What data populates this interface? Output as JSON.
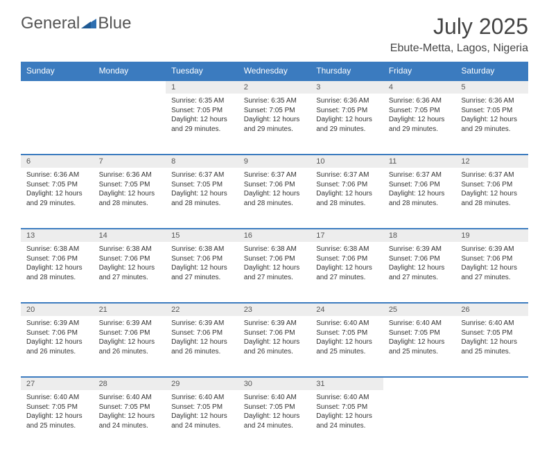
{
  "brand": {
    "part1": "General",
    "part2": "Blue"
  },
  "title": "July 2025",
  "location": "Ebute-Metta, Lagos, Nigeria",
  "colors": {
    "header_bg": "#3b7bbf",
    "header_text": "#ffffff",
    "daynum_bg": "#ededed",
    "border": "#3b7bbf",
    "text": "#333333",
    "title_text": "#444444",
    "logo_text": "#555555",
    "logo_accent": "#2e6fb0"
  },
  "days_of_week": [
    "Sunday",
    "Monday",
    "Tuesday",
    "Wednesday",
    "Thursday",
    "Friday",
    "Saturday"
  ],
  "weeks": [
    {
      "nums": [
        "",
        "",
        "1",
        "2",
        "3",
        "4",
        "5"
      ],
      "data": [
        null,
        null,
        {
          "sunrise": "Sunrise: 6:35 AM",
          "sunset": "Sunset: 7:05 PM",
          "dl1": "Daylight: 12 hours",
          "dl2": "and 29 minutes."
        },
        {
          "sunrise": "Sunrise: 6:35 AM",
          "sunset": "Sunset: 7:05 PM",
          "dl1": "Daylight: 12 hours",
          "dl2": "and 29 minutes."
        },
        {
          "sunrise": "Sunrise: 6:36 AM",
          "sunset": "Sunset: 7:05 PM",
          "dl1": "Daylight: 12 hours",
          "dl2": "and 29 minutes."
        },
        {
          "sunrise": "Sunrise: 6:36 AM",
          "sunset": "Sunset: 7:05 PM",
          "dl1": "Daylight: 12 hours",
          "dl2": "and 29 minutes."
        },
        {
          "sunrise": "Sunrise: 6:36 AM",
          "sunset": "Sunset: 7:05 PM",
          "dl1": "Daylight: 12 hours",
          "dl2": "and 29 minutes."
        }
      ]
    },
    {
      "nums": [
        "6",
        "7",
        "8",
        "9",
        "10",
        "11",
        "12"
      ],
      "data": [
        {
          "sunrise": "Sunrise: 6:36 AM",
          "sunset": "Sunset: 7:05 PM",
          "dl1": "Daylight: 12 hours",
          "dl2": "and 29 minutes."
        },
        {
          "sunrise": "Sunrise: 6:36 AM",
          "sunset": "Sunset: 7:05 PM",
          "dl1": "Daylight: 12 hours",
          "dl2": "and 28 minutes."
        },
        {
          "sunrise": "Sunrise: 6:37 AM",
          "sunset": "Sunset: 7:05 PM",
          "dl1": "Daylight: 12 hours",
          "dl2": "and 28 minutes."
        },
        {
          "sunrise": "Sunrise: 6:37 AM",
          "sunset": "Sunset: 7:06 PM",
          "dl1": "Daylight: 12 hours",
          "dl2": "and 28 minutes."
        },
        {
          "sunrise": "Sunrise: 6:37 AM",
          "sunset": "Sunset: 7:06 PM",
          "dl1": "Daylight: 12 hours",
          "dl2": "and 28 minutes."
        },
        {
          "sunrise": "Sunrise: 6:37 AM",
          "sunset": "Sunset: 7:06 PM",
          "dl1": "Daylight: 12 hours",
          "dl2": "and 28 minutes."
        },
        {
          "sunrise": "Sunrise: 6:37 AM",
          "sunset": "Sunset: 7:06 PM",
          "dl1": "Daylight: 12 hours",
          "dl2": "and 28 minutes."
        }
      ]
    },
    {
      "nums": [
        "13",
        "14",
        "15",
        "16",
        "17",
        "18",
        "19"
      ],
      "data": [
        {
          "sunrise": "Sunrise: 6:38 AM",
          "sunset": "Sunset: 7:06 PM",
          "dl1": "Daylight: 12 hours",
          "dl2": "and 28 minutes."
        },
        {
          "sunrise": "Sunrise: 6:38 AM",
          "sunset": "Sunset: 7:06 PM",
          "dl1": "Daylight: 12 hours",
          "dl2": "and 27 minutes."
        },
        {
          "sunrise": "Sunrise: 6:38 AM",
          "sunset": "Sunset: 7:06 PM",
          "dl1": "Daylight: 12 hours",
          "dl2": "and 27 minutes."
        },
        {
          "sunrise": "Sunrise: 6:38 AM",
          "sunset": "Sunset: 7:06 PM",
          "dl1": "Daylight: 12 hours",
          "dl2": "and 27 minutes."
        },
        {
          "sunrise": "Sunrise: 6:38 AM",
          "sunset": "Sunset: 7:06 PM",
          "dl1": "Daylight: 12 hours",
          "dl2": "and 27 minutes."
        },
        {
          "sunrise": "Sunrise: 6:39 AM",
          "sunset": "Sunset: 7:06 PM",
          "dl1": "Daylight: 12 hours",
          "dl2": "and 27 minutes."
        },
        {
          "sunrise": "Sunrise: 6:39 AM",
          "sunset": "Sunset: 7:06 PM",
          "dl1": "Daylight: 12 hours",
          "dl2": "and 27 minutes."
        }
      ]
    },
    {
      "nums": [
        "20",
        "21",
        "22",
        "23",
        "24",
        "25",
        "26"
      ],
      "data": [
        {
          "sunrise": "Sunrise: 6:39 AM",
          "sunset": "Sunset: 7:06 PM",
          "dl1": "Daylight: 12 hours",
          "dl2": "and 26 minutes."
        },
        {
          "sunrise": "Sunrise: 6:39 AM",
          "sunset": "Sunset: 7:06 PM",
          "dl1": "Daylight: 12 hours",
          "dl2": "and 26 minutes."
        },
        {
          "sunrise": "Sunrise: 6:39 AM",
          "sunset": "Sunset: 7:06 PM",
          "dl1": "Daylight: 12 hours",
          "dl2": "and 26 minutes."
        },
        {
          "sunrise": "Sunrise: 6:39 AM",
          "sunset": "Sunset: 7:06 PM",
          "dl1": "Daylight: 12 hours",
          "dl2": "and 26 minutes."
        },
        {
          "sunrise": "Sunrise: 6:40 AM",
          "sunset": "Sunset: 7:05 PM",
          "dl1": "Daylight: 12 hours",
          "dl2": "and 25 minutes."
        },
        {
          "sunrise": "Sunrise: 6:40 AM",
          "sunset": "Sunset: 7:05 PM",
          "dl1": "Daylight: 12 hours",
          "dl2": "and 25 minutes."
        },
        {
          "sunrise": "Sunrise: 6:40 AM",
          "sunset": "Sunset: 7:05 PM",
          "dl1": "Daylight: 12 hours",
          "dl2": "and 25 minutes."
        }
      ]
    },
    {
      "nums": [
        "27",
        "28",
        "29",
        "30",
        "31",
        "",
        ""
      ],
      "data": [
        {
          "sunrise": "Sunrise: 6:40 AM",
          "sunset": "Sunset: 7:05 PM",
          "dl1": "Daylight: 12 hours",
          "dl2": "and 25 minutes."
        },
        {
          "sunrise": "Sunrise: 6:40 AM",
          "sunset": "Sunset: 7:05 PM",
          "dl1": "Daylight: 12 hours",
          "dl2": "and 24 minutes."
        },
        {
          "sunrise": "Sunrise: 6:40 AM",
          "sunset": "Sunset: 7:05 PM",
          "dl1": "Daylight: 12 hours",
          "dl2": "and 24 minutes."
        },
        {
          "sunrise": "Sunrise: 6:40 AM",
          "sunset": "Sunset: 7:05 PM",
          "dl1": "Daylight: 12 hours",
          "dl2": "and 24 minutes."
        },
        {
          "sunrise": "Sunrise: 6:40 AM",
          "sunset": "Sunset: 7:05 PM",
          "dl1": "Daylight: 12 hours",
          "dl2": "and 24 minutes."
        },
        null,
        null
      ]
    }
  ]
}
